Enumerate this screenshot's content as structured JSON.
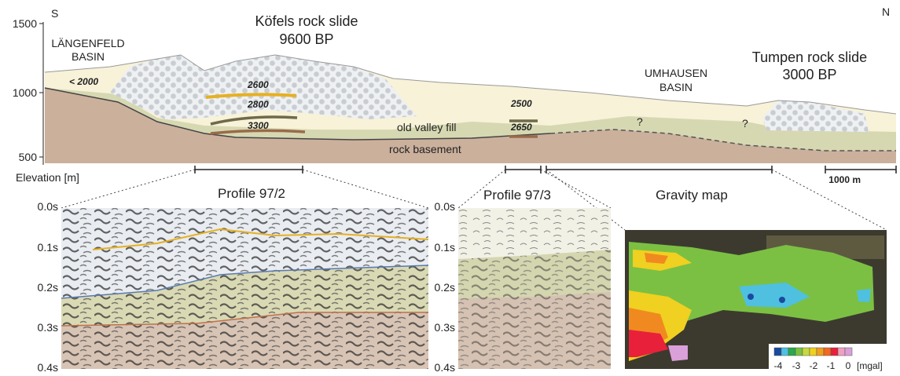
{
  "section": {
    "south": "S",
    "north": "N",
    "elevation_ticks": [
      "1500",
      "1000",
      "500"
    ],
    "elevation_label": "Elevation [m]",
    "kofels": {
      "name": "Köfels rock slide",
      "age": "9600 BP"
    },
    "langenfeld": {
      "line1": "LÄNGENFELD",
      "line2": "BASIN",
      "depth": "< 2000"
    },
    "umhausen": {
      "line1": "UMHAUSEN",
      "line2": "BASIN"
    },
    "tumpen": {
      "name": "Tumpen rock slide",
      "age": "3000 BP"
    },
    "ages": [
      "2600",
      "2800",
      "3300",
      "2500",
      "2650"
    ],
    "layers": {
      "fill": "old valley fill",
      "basement": "rock basement"
    },
    "unknown": [
      "?",
      "?"
    ],
    "scale": "1000 m"
  },
  "profile_97_2": {
    "title": "Profile 97/2",
    "times": [
      "0.0s",
      "0.1s",
      "0.2s",
      "0.3s",
      "0.4s"
    ]
  },
  "profile_97_3": {
    "title": "Profile 97/3",
    "times": [
      "0.0s",
      "0.1s",
      "0.2s",
      "0.3s",
      "0.4s"
    ]
  },
  "gravity_map": {
    "title": "Gravity map",
    "legend": [
      "-4",
      "-3",
      "-2",
      "-1",
      "0",
      "[mgal]"
    ]
  }
}
